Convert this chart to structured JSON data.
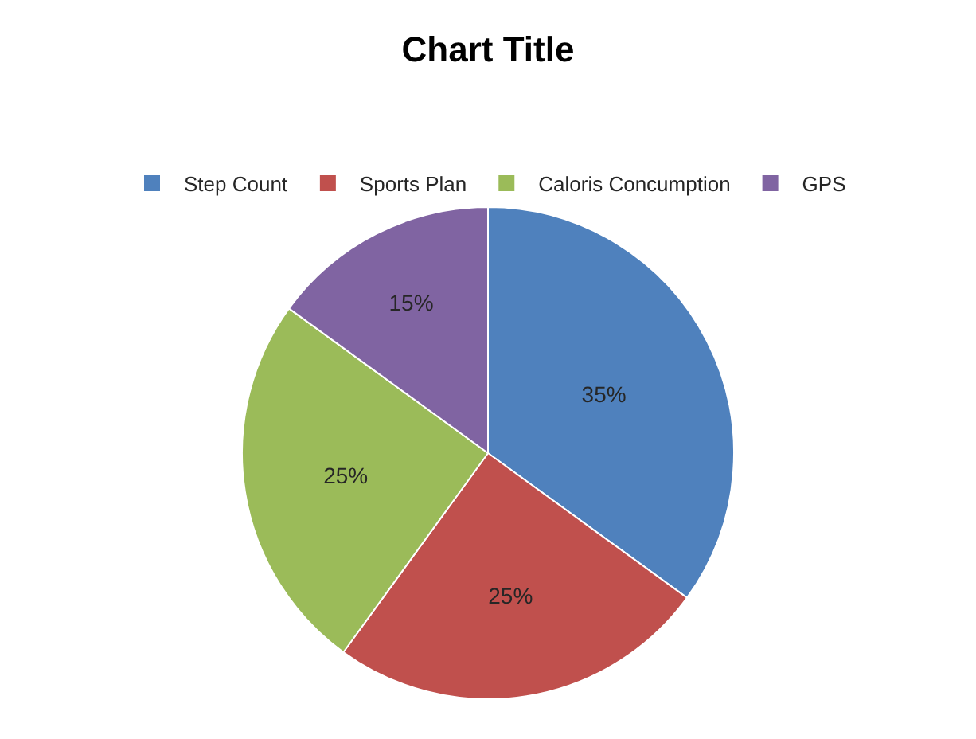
{
  "chart_data": {
    "type": "pie",
    "title": "Chart Title",
    "categories": [
      "Step Count",
      "Sports Plan",
      "Caloris Concumption",
      "GPS"
    ],
    "values": [
      35,
      25,
      25,
      15
    ],
    "colors": [
      "#4f81bd",
      "#c0504d",
      "#9bbb59",
      "#8064a2"
    ],
    "value_labels": [
      "35%",
      "25%",
      "25%",
      "15%"
    ],
    "legend": "top"
  }
}
